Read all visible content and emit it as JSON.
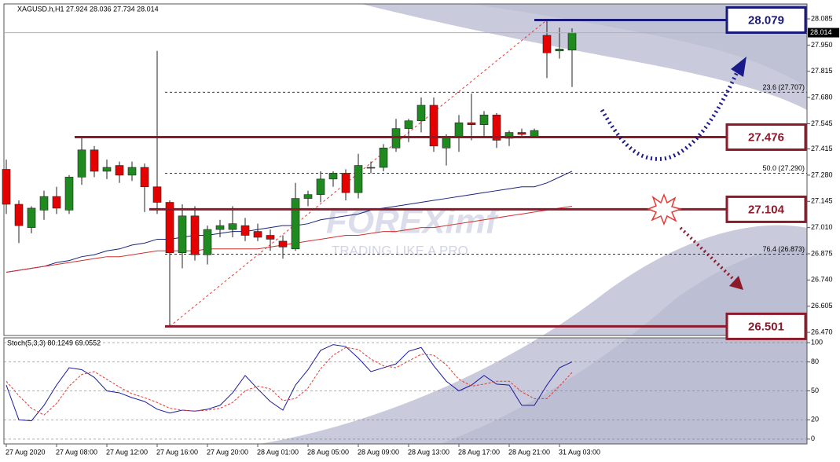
{
  "chart_data": [
    {
      "type": "candlestick",
      "title": "XAGUSD.h,H1  27.924 28.036 27.734 28.014",
      "categories": [
        "27 Aug 2020",
        null,
        null,
        null,
        "27 Aug 08:00",
        null,
        null,
        null,
        "27 Aug 12:00",
        null,
        null,
        null,
        "27 Aug 16:00",
        null,
        null,
        null,
        "27 Aug 20:00",
        null,
        null,
        null,
        "28 Aug 01:00",
        null,
        null,
        null,
        "28 Aug 05:00",
        null,
        null,
        null,
        "28 Aug 09:00",
        null,
        null,
        null,
        "28 Aug 13:00",
        null,
        null,
        null,
        "28 Aug 17:00",
        null,
        null,
        null,
        "28 Aug 21:00",
        null,
        null,
        null,
        "31 Aug 03:00",
        null
      ],
      "open": [
        27.31,
        27.13,
        27.01,
        27.1,
        27.17,
        27.1,
        27.27,
        27.41,
        27.3,
        27.33,
        27.28,
        27.32,
        27.22,
        27.14,
        26.88,
        27.07,
        26.87,
        27.0,
        27.0,
        27.02,
        26.99,
        26.97,
        26.94,
        26.9,
        27.16,
        27.18,
        27.26,
        27.29,
        27.19,
        27.32,
        27.32,
        27.42,
        27.52,
        27.56,
        27.64,
        27.42,
        27.48,
        27.55,
        27.54,
        27.59,
        27.47,
        27.5,
        27.48,
        28.0,
        27.92,
        27.924
      ],
      "high": [
        27.36,
        27.15,
        27.12,
        27.2,
        27.22,
        27.28,
        27.48,
        27.43,
        27.36,
        27.35,
        27.35,
        27.34,
        27.92,
        27.15,
        27.13,
        27.12,
        27.02,
        27.05,
        27.12,
        27.06,
        27.03,
        27.0,
        26.97,
        27.24,
        27.2,
        27.3,
        27.3,
        27.31,
        27.39,
        27.35,
        27.44,
        27.57,
        27.57,
        27.68,
        27.68,
        27.49,
        27.59,
        27.7,
        27.61,
        27.6,
        27.51,
        27.52,
        27.52,
        28.079,
        28.04,
        28.036
      ],
      "low": [
        27.08,
        26.93,
        26.98,
        27.05,
        27.08,
        27.08,
        27.23,
        27.27,
        27.26,
        27.24,
        27.25,
        27.09,
        27.08,
        26.501,
        26.8,
        26.84,
        26.82,
        26.96,
        26.96,
        26.94,
        26.94,
        26.89,
        26.85,
        26.89,
        27.12,
        27.14,
        27.22,
        27.15,
        27.16,
        27.29,
        27.3,
        27.4,
        27.45,
        27.5,
        27.4,
        27.33,
        27.4,
        27.46,
        27.48,
        27.42,
        27.43,
        27.47,
        27.47,
        27.78,
        27.88,
        27.734
      ],
      "close": [
        27.13,
        27.02,
        27.11,
        27.17,
        27.11,
        27.27,
        27.41,
        27.3,
        27.32,
        27.28,
        27.32,
        27.22,
        27.14,
        26.88,
        27.07,
        26.87,
        27.0,
        27.02,
        27.03,
        26.97,
        26.96,
        26.95,
        26.91,
        27.16,
        27.18,
        27.26,
        27.29,
        27.19,
        27.33,
        27.32,
        27.42,
        27.52,
        27.56,
        27.64,
        27.43,
        27.48,
        27.55,
        27.54,
        27.59,
        27.46,
        27.5,
        27.49,
        27.51,
        27.91,
        27.93,
        28.014
      ],
      "up_color": "#1f8a1f",
      "down_color": "#e60000",
      "ylim": [
        26.454,
        28.162
      ],
      "yticks": [
        28.085,
        {
          "value": 27.95,
          "label": "27.950"
        },
        27.815,
        {
          "value": 27.68,
          "label": "27.680"
        },
        27.545,
        27.415,
        {
          "value": 27.28,
          "label": "27.280"
        },
        27.145,
        {
          "value": 27.01,
          "label": "27.010"
        },
        26.875,
        {
          "value": 26.74,
          "label": "26.740"
        },
        26.605,
        {
          "value": 26.47,
          "label": "26.470"
        }
      ],
      "moving_averages": [
        {
          "color": "#1a237e",
          "values": [
            26.78,
            26.79,
            26.8,
            26.81,
            26.83,
            26.84,
            26.86,
            26.87,
            26.89,
            26.9,
            26.92,
            26.93,
            26.95,
            26.95,
            26.96,
            26.97,
            26.97,
            26.98,
            26.99,
            26.99,
            27.0,
            27.01,
            27.02,
            27.02,
            27.03,
            27.05,
            27.06,
            27.07,
            27.08,
            27.1,
            27.11,
            27.12,
            27.13,
            27.14,
            27.15,
            27.16,
            27.17,
            27.18,
            27.19,
            27.2,
            27.21,
            27.22,
            27.22,
            27.24,
            27.27,
            27.3
          ]
        },
        {
          "color": "#d32f2f",
          "values": [
            26.78,
            26.79,
            26.8,
            26.81,
            26.82,
            26.83,
            26.84,
            26.85,
            26.86,
            26.86,
            26.87,
            26.88,
            26.89,
            26.89,
            26.89,
            26.89,
            26.9,
            26.9,
            26.9,
            26.9,
            26.9,
            26.91,
            26.92,
            26.93,
            26.94,
            26.95,
            26.96,
            26.97,
            26.97,
            26.98,
            26.99,
            26.99,
            27.0,
            27.01,
            27.01,
            27.02,
            27.03,
            27.04,
            27.05,
            27.06,
            27.07,
            27.08,
            27.09,
            27.1,
            27.11,
            27.12
          ]
        }
      ],
      "levels": [
        {
          "value": 28.079,
          "color": "#1a1a7a"
        },
        {
          "value": 27.476,
          "color": "#8b1a2b"
        },
        {
          "value": 27.104,
          "color": "#8b1a2b"
        },
        {
          "value": 26.501,
          "color": "#8b1a2b"
        }
      ],
      "fib_levels": [
        {
          "label": "23.6 (27.707)",
          "value": 27.707
        },
        {
          "label": "50.0 (27.290)",
          "value": 27.29
        },
        {
          "label": "76.4 (26.873)",
          "value": 26.873
        }
      ],
      "watermark": {
        "brand": "FOREXimf",
        "tagline": "TRADING LIKE A PRO"
      }
    },
    {
      "type": "line",
      "title": "Stoch(5,3,3) 80.1249 69.0552",
      "series": [
        {
          "color": "#1a1aa0",
          "dashed": false,
          "values": [
            56,
            20,
            19,
            35,
            56,
            74,
            72,
            64,
            50,
            48,
            43,
            39,
            31,
            27,
            30,
            29,
            31,
            35,
            48,
            66,
            52,
            39,
            30,
            56,
            72,
            92,
            98,
            96,
            84,
            70,
            74,
            78,
            91,
            95,
            76,
            60,
            50,
            56,
            66,
            57,
            56,
            35,
            35,
            56,
            74,
            80.1249
          ]
        },
        {
          "color": "#e53935",
          "dashed": true,
          "values": [
            60,
            45,
            32,
            25,
            37,
            55,
            67,
            70,
            62,
            54,
            47,
            43,
            38,
            32,
            30,
            29,
            30,
            32,
            38,
            50,
            55,
            52,
            40,
            42,
            53,
            73,
            87,
            95,
            93,
            83,
            76,
            74,
            81,
            88,
            87,
            77,
            62,
            55,
            57,
            60,
            60,
            49,
            42,
            42,
            55,
            69.0552
          ]
        }
      ],
      "ylim": [
        -5,
        105
      ],
      "yticks": [
        100,
        80,
        50,
        20,
        0
      ]
    }
  ]
}
